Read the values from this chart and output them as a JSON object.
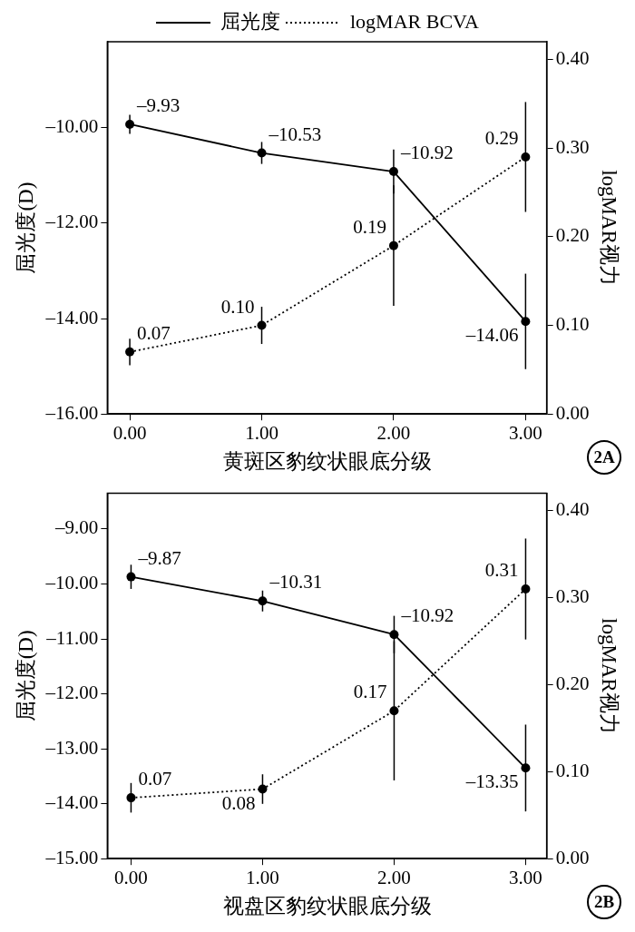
{
  "chart_data": [
    {
      "type": "line",
      "xlabel": "黄斑区豹纹状眼底分级",
      "ylabel": "屈光度(D)",
      "y2label": "logMAR视力",
      "x": [
        0,
        1,
        2,
        3
      ],
      "xlim": [
        -0.17,
        3.16
      ],
      "xticks": [
        {
          "value": 0,
          "label": "0.00"
        },
        {
          "value": 1,
          "label": "1.00"
        },
        {
          "value": 2,
          "label": "2.00"
        },
        {
          "value": 3,
          "label": "3.00"
        }
      ],
      "ylim": [
        -16,
        -8.2
      ],
      "yticks": [
        {
          "value": -16,
          "label": "–16.00"
        },
        {
          "value": -14,
          "label": "–14.00"
        },
        {
          "value": -12,
          "label": "–12.00"
        },
        {
          "value": -10,
          "label": "–10.00"
        }
      ],
      "y2lim": [
        0,
        0.42
      ],
      "y2ticks": [
        {
          "value": 0,
          "label": "0.00"
        },
        {
          "value": 0.1,
          "label": "0.10"
        },
        {
          "value": 0.2,
          "label": "0.20"
        },
        {
          "value": 0.3,
          "label": "0.30"
        },
        {
          "value": 0.4,
          "label": "0.40"
        }
      ],
      "grid": false,
      "legend": "top",
      "marker": "circle",
      "annotations": [
        "2A"
      ],
      "series": [
        {
          "name": "屈光度",
          "color": "#000000",
          "line_style": "solid",
          "values": [
            -9.93,
            -10.53,
            -10.92,
            -14.06
          ],
          "errors": [
            0.2,
            0.23,
            0.46,
            1.0
          ],
          "value_labels": [
            "–9.93",
            "–10.53",
            "–10.92",
            "–14.06"
          ]
        },
        {
          "name": "logMAR BCVA",
          "color": "#000000",
          "line_style": "dotted",
          "axis": "y2",
          "values": [
            0.07,
            0.1,
            0.19,
            0.29
          ],
          "errors": [
            0.015,
            0.021,
            0.068,
            0.062
          ],
          "value_labels": [
            "0.07",
            "0.10",
            "0.19",
            "0.29"
          ]
        }
      ]
    },
    {
      "type": "line",
      "xlabel": "视盘区豹纹状眼底分级",
      "ylabel": "屈光度(D)",
      "y2label": "logMAR视力",
      "x": [
        0,
        1,
        2,
        3
      ],
      "xlim": [
        -0.18,
        3.16
      ],
      "xticks": [
        {
          "value": 0,
          "label": "0.00"
        },
        {
          "value": 1,
          "label": "1.00"
        },
        {
          "value": 2,
          "label": "2.00"
        },
        {
          "value": 3,
          "label": "3.00"
        }
      ],
      "ylim": [
        -15,
        -8.35
      ],
      "yticks": [
        {
          "value": -15,
          "label": "–15.00"
        },
        {
          "value": -14,
          "label": "–14.00"
        },
        {
          "value": -13,
          "label": "–13.00"
        },
        {
          "value": -12,
          "label": "–12.00"
        },
        {
          "value": -11,
          "label": "–11.00"
        },
        {
          "value": -10,
          "label": "–10.00"
        },
        {
          "value": -9,
          "label": "–9.00"
        }
      ],
      "y2lim": [
        0,
        0.42
      ],
      "y2ticks": [
        {
          "value": 0,
          "label": "0.00"
        },
        {
          "value": 0.1,
          "label": "0.10"
        },
        {
          "value": 0.2,
          "label": "0.20"
        },
        {
          "value": 0.3,
          "label": "0.30"
        },
        {
          "value": 0.4,
          "label": "0.40"
        }
      ],
      "grid": false,
      "marker": "circle",
      "annotations": [
        "2B"
      ],
      "series": [
        {
          "color": "#000000",
          "line_style": "solid",
          "values": [
            -9.87,
            -10.31,
            -10.92,
            -13.35
          ],
          "errors": [
            0.22,
            0.19,
            0.34,
            0.79
          ],
          "value_labels": [
            "–9.87",
            "–10.31",
            "–10.92",
            "–13.35"
          ]
        },
        {
          "color": "#000000",
          "line_style": "dotted",
          "axis": "y2",
          "values": [
            0.07,
            0.08,
            0.17,
            0.31
          ],
          "errors": [
            0.017,
            0.017,
            0.08,
            0.058
          ],
          "value_labels": [
            "0.07",
            "0.08",
            "0.17",
            "0.31"
          ]
        }
      ]
    }
  ]
}
